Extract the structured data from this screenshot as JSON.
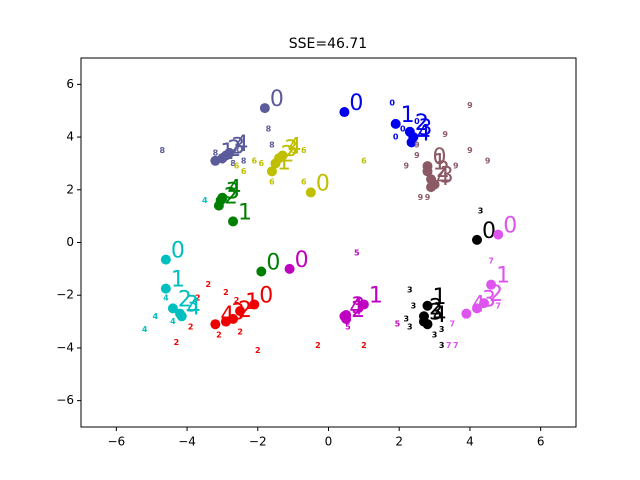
{
  "chart_data": {
    "type": "scatter",
    "title": "SSE=46.71",
    "xlim": [
      -7,
      7
    ],
    "ylim": [
      -7,
      7
    ],
    "xticks": [
      {
        "value": -6,
        "label": "−6"
      },
      {
        "value": -4,
        "label": "−4"
      },
      {
        "value": -2,
        "label": "−2"
      },
      0,
      2,
      4,
      6
    ],
    "yticks": [
      {
        "value": -6,
        "label": "−6"
      },
      {
        "value": -4,
        "label": "−4"
      },
      {
        "value": -2,
        "label": "−2"
      },
      0,
      2,
      4,
      6
    ],
    "series": [
      {
        "color": "#5b5b9b",
        "centroid_x": [
          -1.8,
          -3.2,
          -3.0,
          -2.9,
          -2.8
        ],
        "centroid_y": [
          5.1,
          3.1,
          3.2,
          3.3,
          3.4
        ],
        "centroid_labels": [
          "0",
          "1",
          "2",
          "3",
          "4"
        ],
        "x": [
          -4.7,
          -1.7,
          -1.6,
          -3.2,
          -3.0,
          -2.7,
          -2.4,
          -2.6
        ],
        "y": [
          3.5,
          4.3,
          3.7,
          3.4,
          3.1,
          3.0,
          3.1,
          3.5
        ],
        "labels": [
          "8",
          "8",
          "8",
          "8",
          "8",
          "8",
          "8",
          "8"
        ]
      },
      {
        "color": "#bfbf00",
        "centroid_x": [
          -0.5,
          -1.6,
          -1.5,
          -1.4,
          -1.3
        ],
        "centroid_y": [
          1.9,
          2.7,
          3.0,
          3.2,
          3.3
        ],
        "centroid_labels": [
          "0",
          "1",
          "2",
          "3",
          "4"
        ],
        "x": [
          -2.1,
          -1.9,
          -1.6,
          -1.0,
          -0.7,
          1.0,
          -0.7,
          -2.6,
          -2.4
        ],
        "y": [
          3.1,
          3.0,
          2.3,
          3.5,
          2.3,
          3.1,
          3.5,
          2.9,
          2.7
        ],
        "labels": [
          "6",
          "6",
          "6",
          "6",
          "6",
          "6",
          "6",
          "6",
          "6"
        ]
      },
      {
        "color": "#008000",
        "centroid_x": [
          -1.9,
          -2.7,
          -3.1,
          -3.05,
          -3.0
        ],
        "centroid_y": [
          -1.1,
          0.8,
          1.4,
          1.6,
          1.7
        ],
        "centroid_labels": [
          "0",
          "1",
          "2",
          "3",
          "4"
        ],
        "x": [],
        "y": [],
        "labels": []
      },
      {
        "color": "#0000ee",
        "centroid_x": [
          0.45,
          1.9,
          2.3,
          2.4,
          2.35
        ],
        "centroid_y": [
          4.95,
          4.5,
          4.2,
          4.0,
          3.8
        ],
        "centroid_labels": [
          "0",
          "1",
          "2",
          "3",
          "4"
        ],
        "x": [
          1.8,
          1.9,
          2.5,
          2.1
        ],
        "y": [
          5.3,
          4.0,
          4.6,
          4.3
        ],
        "labels": [
          "0",
          "0",
          "0",
          "0"
        ]
      },
      {
        "color": "#8b5a65",
        "centroid_x": [
          2.8,
          2.8,
          2.9,
          3.0,
          2.9
        ],
        "centroid_y": [
          2.9,
          2.7,
          2.4,
          2.2,
          2.1
        ],
        "centroid_labels": [
          "0",
          "1",
          "2",
          "3",
          "4"
        ],
        "x": [
          4.0,
          3.3,
          4.0,
          4.5,
          3.6,
          2.2,
          2.5,
          2.6,
          2.8,
          2.5
        ],
        "y": [
          5.2,
          4.1,
          3.5,
          3.1,
          2.9,
          2.9,
          3.3,
          1.7,
          1.7,
          3.7
        ],
        "labels": [
          "9",
          "9",
          "9",
          "9",
          "9",
          "9",
          "9",
          "9",
          "9",
          "9"
        ]
      },
      {
        "color": "#000000",
        "centroid_x": [
          4.2,
          2.8,
          2.7,
          2.7,
          2.8
        ],
        "centroid_y": [
          0.1,
          -2.4,
          -2.8,
          -3.0,
          -3.1
        ],
        "centroid_labels": [
          "0",
          "1",
          "2",
          "3",
          "4"
        ],
        "x": [
          4.3,
          2.3,
          2.4,
          2.2,
          2.3,
          3.0,
          3.2,
          3.2
        ],
        "y": [
          1.2,
          -1.8,
          -2.4,
          -2.9,
          -3.2,
          -3.5,
          -3.9,
          -3.3
        ],
        "labels": [
          "3",
          "3",
          "3",
          "3",
          "3",
          "3",
          "3",
          "3"
        ]
      },
      {
        "color": "#dd55ee",
        "centroid_x": [
          4.8,
          4.6,
          4.4,
          4.2,
          3.9
        ],
        "centroid_y": [
          0.3,
          -1.6,
          -2.3,
          -2.5,
          -2.7
        ],
        "centroid_labels": [
          "0",
          "1",
          "2",
          "3",
          "4"
        ],
        "x": [
          4.6,
          4.8,
          3.5,
          3.4,
          3.6
        ],
        "y": [
          -0.7,
          -2.4,
          -3.1,
          -3.9,
          -3.9
        ],
        "labels": [
          "7",
          "7",
          "7",
          "7",
          "7"
        ]
      },
      {
        "color": "#c000c0",
        "centroid_x": [
          -1.1,
          1.0,
          0.5,
          0.5,
          0.45
        ],
        "centroid_y": [
          -1.0,
          -2.35,
          -2.9,
          -2.75,
          -2.8
        ],
        "centroid_labels": [
          "0",
          "1",
          "2",
          "3",
          "4"
        ],
        "x": [
          0.8,
          1.95,
          0.55
        ],
        "y": [
          -0.4,
          -3.1,
          -3.2
        ],
        "labels": [
          "5",
          "5",
          "5"
        ]
      },
      {
        "color": "#ee0000",
        "centroid_x": [
          -2.1,
          -2.5,
          -2.7,
          -2.9,
          -3.2
        ],
        "centroid_y": [
          -2.35,
          -2.6,
          -2.9,
          -3.0,
          -3.1
        ],
        "centroid_labels": [
          "0",
          "1",
          "2",
          "3",
          "4"
        ],
        "x": [
          -3.4,
          -3.7,
          -4.3,
          -3.9,
          -2.7,
          -2.5,
          -2.0,
          -0.3,
          1.0,
          -3.1,
          -2.9,
          -2.6
        ],
        "y": [
          -1.6,
          -2.1,
          -3.8,
          -3.2,
          -2.9,
          -3.4,
          -4.1,
          -3.9,
          -3.9,
          -3.5,
          -1.9,
          -2.2
        ],
        "labels": [
          "2",
          "2",
          "2",
          "2",
          "2",
          "2",
          "2",
          "2",
          "2",
          "2",
          "2",
          "2"
        ]
      },
      {
        "color": "#00bfbf",
        "centroid_x": [
          -4.6,
          -4.6,
          -4.4,
          -4.2,
          -4.15
        ],
        "centroid_y": [
          -0.65,
          -1.75,
          -2.5,
          -2.7,
          -2.8
        ],
        "centroid_labels": [
          "0",
          "1",
          "2",
          "3",
          "4"
        ],
        "x": [
          -5.2,
          -4.9,
          -4.6,
          -3.5,
          -4.4
        ],
        "y": [
          -3.3,
          -2.8,
          -2.1,
          1.6,
          -3.0
        ],
        "labels": [
          "4",
          "4",
          "4",
          "4",
          "4"
        ]
      }
    ]
  }
}
